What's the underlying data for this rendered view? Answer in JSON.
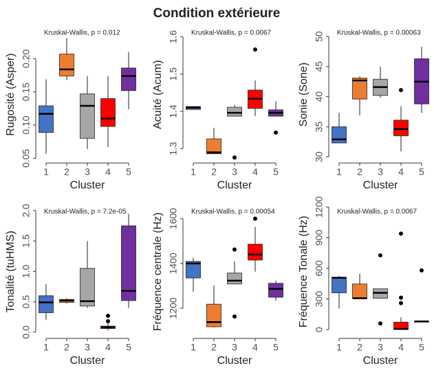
{
  "title": "Condition extérieure",
  "chart_data": [
    {
      "type": "box",
      "annotation": "Kruskal-Wallis, p = 0.012",
      "ylabel": "Rugosité (Asper)",
      "xlabel": "Cluster",
      "categories": [
        "1",
        "2",
        "3",
        "4",
        "5"
      ],
      "colors": [
        "#4472c4",
        "#ed7d31",
        "#a6a6a6",
        "#ff0000",
        "#7030a0"
      ],
      "ylim": [
        0.045,
        0.247
      ],
      "yticks": [
        0.05,
        {
          "value": 0.1,
          "label": "0.10"
        },
        0.15,
        {
          "value": 0.2,
          "label": "0.20"
        }
      ],
      "boxes": [
        {
          "min": 0.057,
          "q1": 0.089,
          "median": 0.117,
          "q3": 0.129,
          "max": 0.169
        },
        {
          "min": 0.168,
          "q1": 0.174,
          "median": 0.184,
          "q3": 0.207,
          "max": 0.231
        },
        {
          "min": 0.064,
          "q1": 0.08,
          "median": 0.129,
          "q3": 0.147,
          "max": 0.174
        },
        {
          "min": 0.067,
          "q1": 0.098,
          "median": 0.11,
          "q3": 0.14,
          "max": 0.174
        },
        {
          "min": 0.124,
          "q1": 0.152,
          "median": 0.174,
          "q3": 0.186,
          "max": 0.21
        }
      ]
    },
    {
      "type": "box",
      "annotation": "Kruskal-Wallis, p = 0.0067",
      "ylabel": "Acuité (Acum)",
      "xlabel": "Cluster",
      "categories": [
        "1",
        "2",
        "3",
        "4",
        "5"
      ],
      "colors": [
        "#4472c4",
        "#ed7d31",
        "#a6a6a6",
        "#ff0000",
        "#7030a0"
      ],
      "ylim": [
        1.265,
        1.625
      ],
      "yticks": [
        1.3,
        1.4,
        1.5,
        1.6
      ],
      "boxes": [
        {
          "min": 1.405,
          "q1": 1.405,
          "median": 1.41,
          "q3": 1.413,
          "max": 1.413
        },
        {
          "min": 1.286,
          "q1": 1.286,
          "median": 1.29,
          "q3": 1.326,
          "max": 1.356
        },
        {
          "min": 1.387,
          "q1": 1.387,
          "median": 1.396,
          "q3": 1.411,
          "max": 1.418,
          "outliers": [
            1.276
          ]
        },
        {
          "min": 1.387,
          "q1": 1.408,
          "median": 1.434,
          "q3": 1.457,
          "max": 1.483,
          "outliers": [
            1.566
          ]
        },
        {
          "min": 1.387,
          "q1": 1.387,
          "median": 1.396,
          "q3": 1.404,
          "max": 1.427,
          "outliers": [
            1.343
          ]
        }
      ]
    },
    {
      "type": "box",
      "annotation": "Kruskal-Wallis, p = 0.00063",
      "ylabel": "Sonie (Sone)",
      "xlabel": "Cluster",
      "categories": [
        "1",
        "2",
        "3",
        "4",
        "5"
      ],
      "colors": [
        "#4472c4",
        "#ed7d31",
        "#a6a6a6",
        "#ff0000",
        "#7030a0"
      ],
      "ylim": [
        29.2,
        51.5
      ],
      "yticks": [
        30,
        35,
        40,
        45,
        50
      ],
      "boxes": [
        {
          "min": 32.3,
          "q1": 32.3,
          "median": 32.9,
          "q3": 35.0,
          "max": 37.3
        },
        {
          "min": 36.9,
          "q1": 39.6,
          "median": 42.7,
          "q3": 43.1,
          "max": 43.4
        },
        {
          "min": 39.8,
          "q1": 40.2,
          "median": 41.6,
          "q3": 42.9,
          "max": 45.0
        },
        {
          "min": 30.9,
          "q1": 33.5,
          "median": 34.6,
          "q3": 36.1,
          "max": 38.4,
          "outliers": [
            41.1
          ]
        },
        {
          "min": 37.3,
          "q1": 38.8,
          "median": 42.5,
          "q3": 46.3,
          "max": 48.3
        }
      ]
    },
    {
      "type": "box",
      "annotation": "Kruskal-Wallis, p = 7.2e-05",
      "ylabel": "Tonalité (tuHMS)",
      "xlabel": "Cluster",
      "categories": [
        "1",
        "2",
        "3",
        "4",
        "5"
      ],
      "colors": [
        "#4472c4",
        "#ed7d31",
        "#a6a6a6",
        "#ff0000",
        "#7030a0"
      ],
      "ylim": [
        -0.08,
        2.07
      ],
      "yticks": [
        {
          "value": 0,
          "label": "0.0"
        },
        0.5,
        {
          "value": 1,
          "label": "1.0"
        },
        1.5,
        {
          "value": 2,
          "label": "2.0"
        }
      ],
      "boxes": [
        {
          "min": 0.2,
          "q1": 0.32,
          "median": 0.49,
          "q3": 0.6,
          "max": 0.79
        },
        {
          "min": 0.47,
          "q1": 0.49,
          "median": 0.52,
          "q3": 0.54,
          "max": 0.56
        },
        {
          "min": 0.4,
          "q1": 0.43,
          "median": 0.51,
          "q3": 1.05,
          "max": 1.5
        },
        {
          "min": 0.03,
          "q1": 0.06,
          "median": 0.08,
          "q3": 0.1,
          "max": 0.15,
          "outliers": [
            0.27,
            0.18
          ]
        },
        {
          "min": 0.4,
          "q1": 0.52,
          "median": 0.68,
          "q3": 1.75,
          "max": 1.95
        }
      ]
    },
    {
      "type": "box",
      "annotation": "Kruskal-Wallis, p = 0.00054",
      "ylabel": "Fréquence centrale (Hz)",
      "xlabel": "Cluster",
      "categories": [
        "1",
        "2",
        "3",
        "4",
        "5"
      ],
      "colors": [
        "#4472c4",
        "#ed7d31",
        "#a6a6a6",
        "#ff0000",
        "#7030a0"
      ],
      "ylim": [
        1071,
        1655
      ],
      "yticks": [
        1200,
        1400,
        1600
      ],
      "boxes": [
        {
          "min": 1274,
          "q1": 1335,
          "median": 1400,
          "q3": 1409,
          "max": 1425
        },
        {
          "min": 1114,
          "q1": 1117,
          "median": 1138,
          "q3": 1218,
          "max": 1302
        },
        {
          "min": 1308,
          "q1": 1308,
          "median": 1323,
          "q3": 1357,
          "max": 1409,
          "outliers": [
            1462,
            1163
          ]
        },
        {
          "min": 1363,
          "q1": 1415,
          "median": 1440,
          "q3": 1486,
          "max": 1563,
          "outliers": [
            1600
          ]
        },
        {
          "min": 1234,
          "q1": 1249,
          "median": 1286,
          "q3": 1311,
          "max": 1323
        }
      ]
    },
    {
      "type": "box",
      "annotation": "Kruskal-Wallis, p = 0.0067",
      "ylabel": "Fréquence Tonale (Hz)",
      "xlabel": "Cluster",
      "categories": [
        "1",
        "2",
        "3",
        "4",
        "5"
      ],
      "colors": [
        "#4472c4",
        "#ed7d31",
        "#a6a6a6",
        "#ff0000",
        "#7030a0"
      ],
      "ylim": [
        -73,
        1207
      ],
      "yticks": [
        0,
        300,
        600,
        900,
        1200
      ],
      "boxes": [
        {
          "min": 207,
          "q1": 360,
          "median": 507,
          "q3": 513,
          "max": 527
        },
        {
          "min": 307,
          "q1": 307,
          "median": 307,
          "q3": 447,
          "max": 547
        },
        {
          "min": 307,
          "q1": 307,
          "median": 360,
          "q3": 400,
          "max": 400,
          "outliers": [
            727,
            60
          ]
        },
        {
          "min": 0,
          "q1": 0,
          "median": 7,
          "q3": 73,
          "max": 120,
          "outliers": [
            940,
            313,
            260
          ]
        },
        {
          "min": 73,
          "q1": 73,
          "median": 80,
          "q3": 80,
          "max": 80,
          "outliers": [
            580
          ]
        }
      ]
    }
  ]
}
